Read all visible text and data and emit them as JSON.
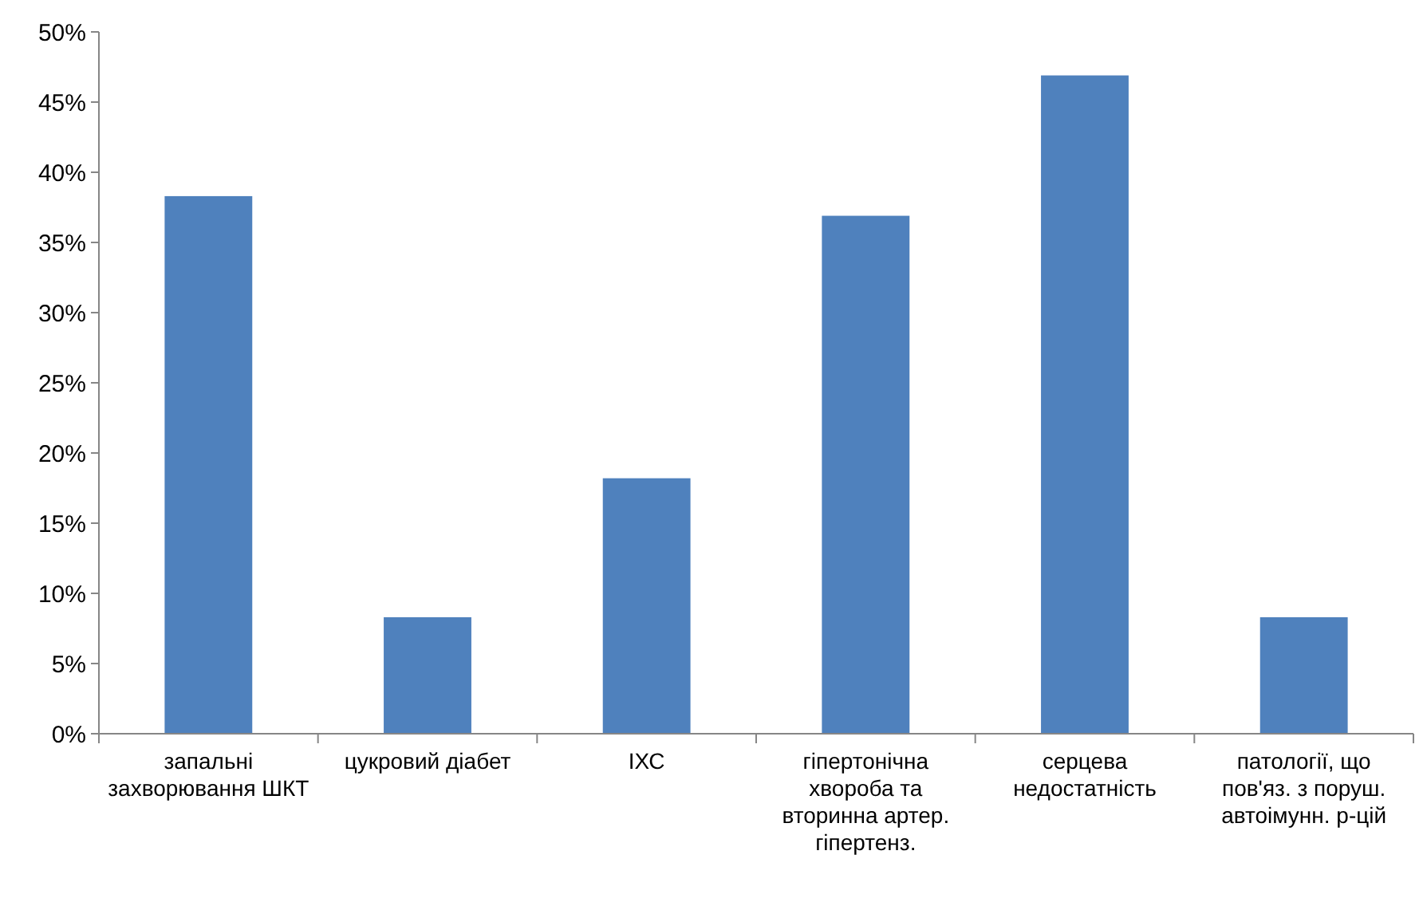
{
  "chart_data": {
    "type": "bar",
    "categories": [
      "запальні захворювання ШКТ",
      "цукровий діабет",
      "ІХС",
      "гіпертонічна хвороба та вторинна артер. гіпертенз.",
      "серцева недостатність",
      "патології, що пов'яз. з поруш. автоімунн. р-цій"
    ],
    "values": [
      38.3,
      8.3,
      18.2,
      36.9,
      46.9,
      8.3
    ],
    "color": "#4f81bd",
    "ylim": [
      0,
      50
    ],
    "yticks": [
      {
        "value": 0,
        "label": "0%"
      },
      {
        "value": 5,
        "label": "5%"
      },
      {
        "value": 10,
        "label": "10%"
      },
      {
        "value": 15,
        "label": "15%"
      },
      {
        "value": 20,
        "label": "20%"
      },
      {
        "value": 25,
        "label": "25%"
      },
      {
        "value": 30,
        "label": "30%"
      },
      {
        "value": 35,
        "label": "35%"
      },
      {
        "value": 40,
        "label": "40%"
      },
      {
        "value": 45,
        "label": "45%"
      },
      {
        "value": 50,
        "label": "50%"
      }
    ],
    "grid": false
  }
}
